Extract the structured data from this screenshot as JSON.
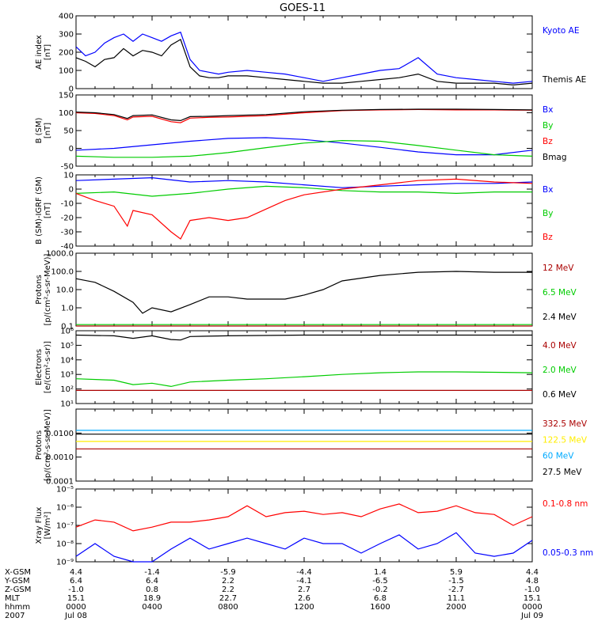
{
  "title": "GOES-11",
  "chart_data": [
    {
      "type": "line",
      "ylabel": [
        "AE index",
        "[nT]"
      ],
      "ylim": [
        0,
        400
      ],
      "yticks": [
        "0",
        "100",
        "200",
        "300",
        "400"
      ],
      "log": false,
      "xlim_hours": [
        0,
        24
      ],
      "series": [
        {
          "name": "Kyoto AE",
          "color": "#0000ff",
          "x": [
            0,
            0.5,
            1,
            1.5,
            2,
            2.5,
            3,
            3.5,
            4,
            4.5,
            5,
            5.5,
            6,
            6.5,
            7,
            7.5,
            8,
            9,
            10,
            11,
            12,
            13,
            14,
            15,
            16,
            17,
            18,
            19,
            20,
            21,
            22,
            23,
            24
          ],
          "y": [
            230,
            180,
            200,
            250,
            280,
            300,
            260,
            300,
            280,
            260,
            290,
            310,
            160,
            100,
            90,
            80,
            90,
            100,
            90,
            80,
            60,
            40,
            60,
            80,
            100,
            110,
            170,
            80,
            60,
            50,
            40,
            30,
            40
          ]
        },
        {
          "name": "Themis AE",
          "color": "#000000",
          "x": [
            0,
            0.5,
            1,
            1.5,
            2,
            2.5,
            3,
            3.5,
            4,
            4.5,
            5,
            5.5,
            6,
            6.5,
            7,
            7.5,
            8,
            9,
            10,
            11,
            12,
            13,
            14,
            15,
            16,
            17,
            18,
            19,
            20,
            21,
            22,
            23,
            24
          ],
          "y": [
            170,
            150,
            120,
            160,
            170,
            220,
            180,
            210,
            200,
            180,
            240,
            270,
            120,
            70,
            60,
            60,
            70,
            70,
            60,
            50,
            40,
            30,
            30,
            40,
            50,
            60,
            80,
            40,
            30,
            30,
            30,
            20,
            30
          ]
        }
      ]
    },
    {
      "type": "line",
      "ylabel": [
        "B (SM)",
        "[nT]"
      ],
      "ylim": [
        -50,
        150
      ],
      "yticks": [
        "-50",
        "0",
        "50",
        "100",
        "150"
      ],
      "log": false,
      "xlim_hours": [
        0,
        24
      ],
      "series": [
        {
          "name": "Bx",
          "color": "#0000ff",
          "x": [
            0,
            2,
            4,
            6,
            8,
            10,
            12,
            14,
            16,
            18,
            20,
            22,
            24
          ],
          "y": [
            -5,
            0,
            10,
            20,
            28,
            30,
            25,
            15,
            3,
            -10,
            -18,
            -18,
            -5
          ]
        },
        {
          "name": "By",
          "color": "#00cc00",
          "x": [
            0,
            2,
            4,
            6,
            8,
            10,
            12,
            14,
            16,
            18,
            20,
            22,
            24
          ],
          "y": [
            -22,
            -25,
            -25,
            -22,
            -12,
            2,
            15,
            22,
            20,
            8,
            -5,
            -18,
            -22
          ]
        },
        {
          "name": "Bz",
          "color": "#ff0000",
          "x": [
            0,
            1,
            2,
            2.7,
            3,
            4,
            5,
            5.5,
            6,
            7,
            8,
            10,
            12,
            14,
            16,
            18,
            20,
            22,
            24
          ],
          "y": [
            100,
            98,
            92,
            80,
            88,
            90,
            75,
            72,
            85,
            87,
            88,
            92,
            100,
            106,
            108,
            109,
            108,
            108,
            107
          ]
        },
        {
          "name": "Bmag",
          "color": "#000000",
          "x": [
            0,
            1,
            2,
            2.7,
            3,
            4,
            5,
            5.5,
            6,
            7,
            8,
            10,
            12,
            14,
            16,
            18,
            20,
            22,
            24
          ],
          "y": [
            102,
            100,
            95,
            84,
            92,
            94,
            80,
            78,
            89,
            90,
            92,
            95,
            103,
            107,
            109,
            110,
            110,
            109,
            108
          ]
        }
      ]
    },
    {
      "type": "line",
      "ylabel": [
        "B (SM)-IGRF (SM)",
        "[nT]"
      ],
      "ylim": [
        -40,
        10
      ],
      "yticks": [
        "-40",
        "-30",
        "-20",
        "-10",
        "0",
        "10"
      ],
      "log": false,
      "xlim_hours": [
        0,
        24
      ],
      "series": [
        {
          "name": "Bx",
          "color": "#0000ff",
          "x": [
            0,
            2,
            4,
            6,
            8,
            10,
            12,
            14,
            16,
            18,
            20,
            22,
            24
          ],
          "y": [
            6,
            7,
            8,
            5,
            6,
            5,
            3,
            1,
            2,
            3,
            4,
            4,
            5
          ]
        },
        {
          "name": "By",
          "color": "#00cc00",
          "x": [
            0,
            2,
            4,
            6,
            8,
            10,
            12,
            14,
            16,
            18,
            20,
            22,
            24
          ],
          "y": [
            -3,
            -2,
            -5,
            -3,
            0,
            2,
            1,
            -1,
            -2,
            -2,
            -3,
            -2,
            -2
          ]
        },
        {
          "name": "Bz",
          "color": "#ff0000",
          "x": [
            0,
            1,
            2,
            2.7,
            3,
            4,
            5,
            5.5,
            6,
            7,
            8,
            9,
            10,
            11,
            12,
            14,
            16,
            18,
            20,
            22,
            24
          ],
          "y": [
            -3,
            -8,
            -12,
            -26,
            -15,
            -18,
            -30,
            -35,
            -22,
            -20,
            -22,
            -20,
            -14,
            -8,
            -4,
            0,
            3,
            6,
            7,
            5,
            4
          ]
        }
      ]
    },
    {
      "type": "line",
      "ylabel": [
        "Protons",
        "[p/(cm²-s-sr-MeV)]"
      ],
      "ylim": [
        0.1,
        1000
      ],
      "yticks": [
        "0.1",
        "1.0",
        "10.0",
        "100.0",
        "1000.0"
      ],
      "log": true,
      "xlim_hours": [
        0,
        24
      ],
      "series": [
        {
          "name": "12 MeV",
          "color": "#aa0000",
          "x": [
            0,
            24
          ],
          "y": [
            0.1,
            0.1
          ]
        },
        {
          "name": "6.5 MeV",
          "color": "#00cc00",
          "x": [
            0,
            24
          ],
          "y": [
            0.12,
            0.12
          ]
        },
        {
          "name": "2.4 MeV",
          "color": "#000000",
          "x": [
            0,
            1,
            2,
            3,
            3.5,
            4,
            5,
            6,
            7,
            8,
            9,
            10,
            11,
            12,
            13,
            14,
            16,
            18,
            20,
            22,
            24
          ],
          "y": [
            40,
            25,
            8,
            2,
            0.5,
            1,
            0.6,
            1.5,
            4,
            4,
            3,
            3,
            3,
            5,
            10,
            30,
            60,
            90,
            100,
            90,
            90
          ]
        }
      ]
    },
    {
      "type": "line",
      "ylabel": [
        "Electrons",
        "[e/(cm²-s-sr)]"
      ],
      "ylim": [
        10,
        1000000
      ],
      "yticks": [
        "10¹",
        "10²",
        "10³",
        "10⁴",
        "10⁵",
        "10⁶"
      ],
      "log": true,
      "xlim_hours": [
        0,
        24
      ],
      "series": [
        {
          "name": "4.0 MeV",
          "color": "#aa0000",
          "x": [
            0,
            24
          ],
          "y": [
            80,
            80
          ]
        },
        {
          "name": "2.0 MeV",
          "color": "#00cc00",
          "x": [
            0,
            2,
            3,
            4,
            5,
            6,
            8,
            10,
            12,
            14,
            16,
            18,
            20,
            22,
            24
          ],
          "y": [
            500,
            400,
            200,
            250,
            150,
            300,
            400,
            500,
            700,
            1000,
            1300,
            1500,
            1500,
            1400,
            1300
          ]
        },
        {
          "name": "0.6 MeV",
          "color": "#000000",
          "x": [
            0,
            2,
            3,
            4,
            5,
            5.5,
            6,
            8,
            12,
            16,
            20,
            24
          ],
          "y": [
            500000,
            450000,
            300000,
            450000,
            250000,
            230000,
            400000,
            450000,
            500000,
            500000,
            500000,
            500000
          ]
        }
      ]
    },
    {
      "type": "line",
      "ylabel": [
        "Protons",
        "[p/(cm²-s-sr-MeV)]"
      ],
      "ylim": [
        0.0001,
        0.1
      ],
      "yticks": [
        "0.0001",
        "0.0010",
        "0.0100"
      ],
      "log": true,
      "xlim_hours": [
        0,
        24
      ],
      "series": [
        {
          "name": "332.5 MeV",
          "color": "#aa0000",
          "x": [
            0,
            24
          ],
          "y": [
            0.0022,
            0.0022
          ]
        },
        {
          "name": "122.5 MeV",
          "color": "#ffee00",
          "x": [
            0,
            24
          ],
          "y": [
            0.0045,
            0.0045
          ]
        },
        {
          "name": "60 MeV",
          "color": "#00aaff",
          "x": [
            0,
            24
          ],
          "y": [
            0.013,
            0.013
          ]
        },
        {
          "name": "27.5 MeV",
          "color": "#000000",
          "x": [
            0,
            24
          ],
          "y": [
            0.009,
            0.009
          ]
        }
      ]
    },
    {
      "type": "line",
      "ylabel": [
        "Xray Flux",
        "[W/m²]"
      ],
      "ylim": [
        1e-09,
        1e-05
      ],
      "yticks": [
        "10⁻⁹",
        "10⁻⁸",
        "10⁻⁷",
        "10⁻⁶",
        "10⁻⁵"
      ],
      "log": true,
      "xlim_hours": [
        0,
        24
      ],
      "series": [
        {
          "name": "0.1-0.8 nm",
          "color": "#ff0000",
          "x": [
            0,
            1,
            2,
            3,
            4,
            5,
            6,
            7,
            8,
            9,
            10,
            11,
            12,
            13,
            14,
            15,
            16,
            17,
            18,
            19,
            20,
            21,
            22,
            23,
            24
          ],
          "y": [
            8e-08,
            2e-07,
            1.5e-07,
            5e-08,
            8e-08,
            1.5e-07,
            1.5e-07,
            2e-07,
            3e-07,
            1.2e-06,
            3e-07,
            5e-07,
            6e-07,
            4e-07,
            5e-07,
            3e-07,
            8e-07,
            1.5e-06,
            5e-07,
            6e-07,
            1.2e-06,
            5e-07,
            4e-07,
            1e-07,
            3e-07
          ]
        },
        {
          "name": "0.05-0.3 nm",
          "color": "#0000ff",
          "x": [
            0,
            1,
            2,
            3,
            4,
            5,
            6,
            7,
            8,
            9,
            10,
            11,
            12,
            13,
            14,
            15,
            16,
            17,
            18,
            19,
            20,
            21,
            22,
            23,
            24
          ],
          "y": [
            2e-09,
            1e-08,
            2e-09,
            1e-09,
            1e-09,
            5e-09,
            2e-08,
            5e-09,
            1e-08,
            2e-08,
            1e-08,
            5e-09,
            2e-08,
            1e-08,
            1e-08,
            3e-09,
            1e-08,
            3e-08,
            5e-09,
            1e-08,
            4e-08,
            3e-09,
            2e-09,
            3e-09,
            1.5e-08
          ]
        }
      ]
    }
  ],
  "orbit": {
    "labels": [
      "X-GSM",
      "Y-GSM",
      "Z-GSM",
      "MLT",
      "hhmm",
      "2007"
    ],
    "columns": [
      [
        "4.4",
        "6.4",
        "-1.0",
        "15.1",
        "0000",
        "Jul 08"
      ],
      [
        "-1.4",
        "6.4",
        "0.8",
        "18.9",
        "0400",
        ""
      ],
      [
        "-5.9",
        "2.2",
        "2.2",
        "22.7",
        "0800",
        ""
      ],
      [
        "-4.4",
        "-4.1",
        "2.7",
        "2.6",
        "1200",
        ""
      ],
      [
        "1.4",
        "-6.5",
        "-0.2",
        "6.8",
        "1600",
        ""
      ],
      [
        "5.9",
        "-1.5",
        "-2.7",
        "11.1",
        "2000",
        ""
      ],
      [
        "4.4",
        "4.8",
        "-1.0",
        "15.1",
        "0000",
        "Jul 09"
      ]
    ]
  }
}
